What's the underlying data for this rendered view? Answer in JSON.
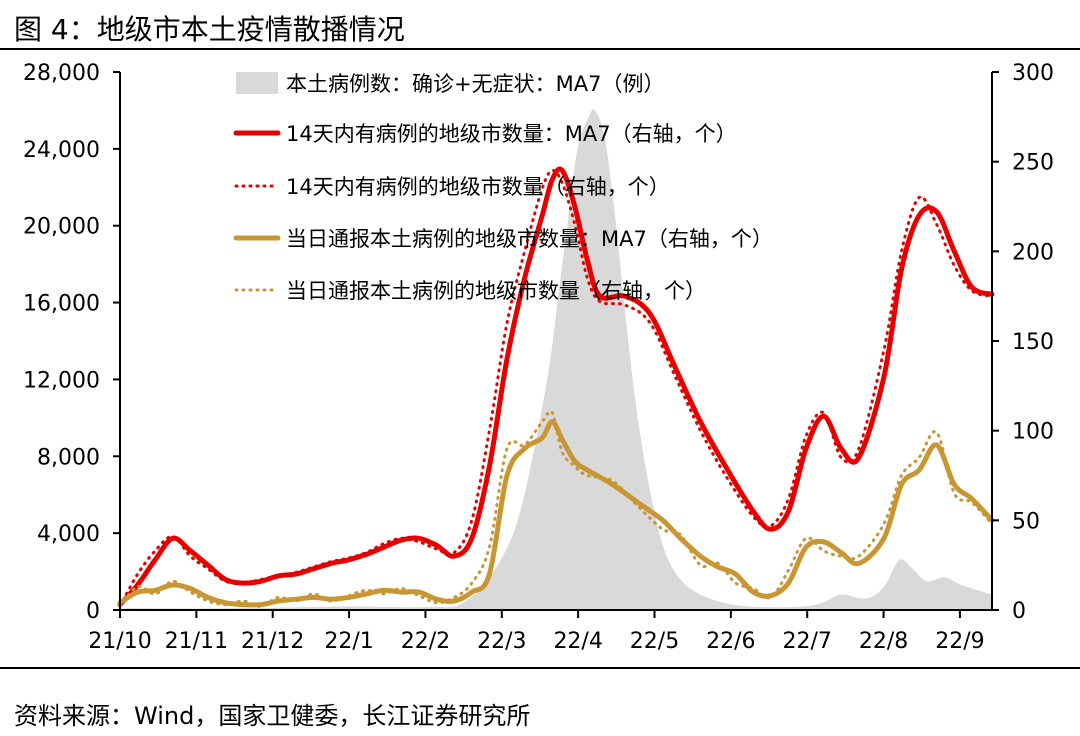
{
  "header": {
    "title": "图 4：地级市本土疫情散播情况"
  },
  "footer": {
    "source": "资料来源：Wind，国家卫健委，长江证券研究所"
  },
  "chart_data": {
    "type": "line",
    "x_tick_labels": [
      "21/10",
      "21/11",
      "21/12",
      "22/1",
      "22/2",
      "22/3",
      "22/4",
      "22/5",
      "22/6",
      "22/7",
      "22/8",
      "22/9"
    ],
    "x_range": [
      "2021-10-01",
      "2022-09-13"
    ],
    "y_left": {
      "ylim": [
        0,
        28000
      ],
      "tick_labels": [
        "0",
        "4,000",
        "8,000",
        "12,000",
        "16,000",
        "20,000",
        "24,000",
        "28,000"
      ],
      "ticks": [
        0,
        4000,
        8000,
        12000,
        16000,
        20000,
        24000,
        28000
      ]
    },
    "y_right": {
      "ylim": [
        0,
        300
      ],
      "tick_labels": [
        "0",
        "50",
        "100",
        "150",
        "200",
        "250",
        "300"
      ],
      "ticks": [
        0,
        50,
        100,
        150,
        200,
        250,
        300
      ]
    },
    "legend_placement": "top-center",
    "grid": false,
    "series": [
      {
        "name": "本土病例数：确诊+无症状：MA7（例）",
        "kind": "area",
        "axis": "left",
        "color": "#d9d9d9",
        "points": [
          [
            "2021-10-01",
            100
          ],
          [
            "2021-11-01",
            80
          ],
          [
            "2021-12-01",
            120
          ],
          [
            "2022-01-01",
            180
          ],
          [
            "2022-02-01",
            150
          ],
          [
            "2022-02-15",
            400
          ],
          [
            "2022-03-01",
            2500
          ],
          [
            "2022-03-10",
            5500
          ],
          [
            "2022-03-20",
            12000
          ],
          [
            "2022-03-25",
            17000
          ],
          [
            "2022-03-28",
            20000
          ],
          [
            "2022-04-01",
            24000
          ],
          [
            "2022-04-05",
            25500
          ],
          [
            "2022-04-08",
            26000
          ],
          [
            "2022-04-12",
            24500
          ],
          [
            "2022-04-16",
            20500
          ],
          [
            "2022-04-20",
            15500
          ],
          [
            "2022-04-25",
            10000
          ],
          [
            "2022-05-01",
            5500
          ],
          [
            "2022-05-06",
            3000
          ],
          [
            "2022-05-12",
            1600
          ],
          [
            "2022-05-20",
            800
          ],
          [
            "2022-06-01",
            300
          ],
          [
            "2022-06-15",
            150
          ],
          [
            "2022-07-01",
            200
          ],
          [
            "2022-07-08",
            400
          ],
          [
            "2022-07-15",
            800
          ],
          [
            "2022-07-25",
            600
          ],
          [
            "2022-08-01",
            1200
          ],
          [
            "2022-08-07",
            2600
          ],
          [
            "2022-08-12",
            2200
          ],
          [
            "2022-08-18",
            1500
          ],
          [
            "2022-08-25",
            1700
          ],
          [
            "2022-09-01",
            1300
          ],
          [
            "2022-09-13",
            800
          ]
        ]
      },
      {
        "name": "14天内有病例的地级市数量：MA7（右轴，个）",
        "kind": "line",
        "axis": "right",
        "style": "solid",
        "color": "#e60000",
        "points": [
          [
            "2021-10-01",
            3
          ],
          [
            "2021-10-08",
            14
          ],
          [
            "2021-10-15",
            28
          ],
          [
            "2021-10-22",
            40
          ],
          [
            "2021-10-29",
            33
          ],
          [
            "2021-11-05",
            25
          ],
          [
            "2021-11-12",
            17
          ],
          [
            "2021-11-19",
            15
          ],
          [
            "2021-11-26",
            16
          ],
          [
            "2021-12-03",
            19
          ],
          [
            "2021-12-10",
            20
          ],
          [
            "2021-12-17",
            23
          ],
          [
            "2021-12-24",
            26
          ],
          [
            "2021-12-31",
            28
          ],
          [
            "2022-01-07",
            31
          ],
          [
            "2022-01-14",
            35
          ],
          [
            "2022-01-21",
            39
          ],
          [
            "2022-01-28",
            40
          ],
          [
            "2022-02-04",
            36
          ],
          [
            "2022-02-11",
            30
          ],
          [
            "2022-02-18",
            40
          ],
          [
            "2022-02-25",
            80
          ],
          [
            "2022-03-04",
            140
          ],
          [
            "2022-03-11",
            185
          ],
          [
            "2022-03-18",
            220
          ],
          [
            "2022-03-22",
            240
          ],
          [
            "2022-03-26",
            245
          ],
          [
            "2022-03-31",
            225
          ],
          [
            "2022-04-05",
            195
          ],
          [
            "2022-04-10",
            175
          ],
          [
            "2022-04-20",
            175
          ],
          [
            "2022-04-30",
            165
          ],
          [
            "2022-05-10",
            135
          ],
          [
            "2022-05-20",
            105
          ],
          [
            "2022-05-30",
            80
          ],
          [
            "2022-06-10",
            55
          ],
          [
            "2022-06-17",
            45
          ],
          [
            "2022-06-24",
            55
          ],
          [
            "2022-07-01",
            90
          ],
          [
            "2022-07-08",
            108
          ],
          [
            "2022-07-15",
            90
          ],
          [
            "2022-07-22",
            85
          ],
          [
            "2022-08-01",
            130
          ],
          [
            "2022-08-08",
            190
          ],
          [
            "2022-08-15",
            220
          ],
          [
            "2022-08-22",
            222
          ],
          [
            "2022-08-29",
            200
          ],
          [
            "2022-09-05",
            180
          ],
          [
            "2022-09-13",
            176
          ]
        ]
      },
      {
        "name": "14天内有病例的地级市数量（右轴，个）",
        "kind": "line",
        "axis": "right",
        "style": "dotted",
        "color": "#e60000",
        "points": [
          [
            "2021-10-01",
            2
          ],
          [
            "2021-10-08",
            20
          ],
          [
            "2021-10-15",
            33
          ],
          [
            "2021-10-22",
            41
          ],
          [
            "2021-10-29",
            30
          ],
          [
            "2021-11-05",
            23
          ],
          [
            "2021-11-12",
            16
          ],
          [
            "2021-11-19",
            15
          ],
          [
            "2021-11-26",
            17
          ],
          [
            "2021-12-03",
            19
          ],
          [
            "2021-12-10",
            21
          ],
          [
            "2021-12-17",
            24
          ],
          [
            "2021-12-24",
            27
          ],
          [
            "2021-12-31",
            29
          ],
          [
            "2022-01-07",
            32
          ],
          [
            "2022-01-14",
            37
          ],
          [
            "2022-01-21",
            40
          ],
          [
            "2022-01-28",
            38
          ],
          [
            "2022-02-04",
            34
          ],
          [
            "2022-02-11",
            32
          ],
          [
            "2022-02-18",
            50
          ],
          [
            "2022-02-25",
            100
          ],
          [
            "2022-03-04",
            160
          ],
          [
            "2022-03-11",
            200
          ],
          [
            "2022-03-18",
            235
          ],
          [
            "2022-03-22",
            245
          ],
          [
            "2022-03-26",
            238
          ],
          [
            "2022-03-31",
            215
          ],
          [
            "2022-04-05",
            185
          ],
          [
            "2022-04-10",
            172
          ],
          [
            "2022-04-20",
            170
          ],
          [
            "2022-04-30",
            160
          ],
          [
            "2022-05-10",
            130
          ],
          [
            "2022-05-20",
            100
          ],
          [
            "2022-05-30",
            75
          ],
          [
            "2022-06-10",
            52
          ],
          [
            "2022-06-17",
            47
          ],
          [
            "2022-06-24",
            62
          ],
          [
            "2022-07-01",
            97
          ],
          [
            "2022-07-08",
            110
          ],
          [
            "2022-07-15",
            85
          ],
          [
            "2022-07-22",
            90
          ],
          [
            "2022-08-01",
            145
          ],
          [
            "2022-08-08",
            200
          ],
          [
            "2022-08-15",
            230
          ],
          [
            "2022-08-22",
            215
          ],
          [
            "2022-08-29",
            192
          ],
          [
            "2022-09-05",
            178
          ],
          [
            "2022-09-13",
            175
          ]
        ]
      },
      {
        "name": "当日通报本土病例的地级市数量：MA7（右轴，个）",
        "kind": "line",
        "axis": "right",
        "style": "solid",
        "color": "#c89632",
        "points": [
          [
            "2021-10-01",
            4
          ],
          [
            "2021-10-08",
            10
          ],
          [
            "2021-10-15",
            11
          ],
          [
            "2021-10-22",
            14
          ],
          [
            "2021-10-29",
            12
          ],
          [
            "2021-11-05",
            7
          ],
          [
            "2021-11-12",
            4
          ],
          [
            "2021-11-19",
            3
          ],
          [
            "2021-11-26",
            3
          ],
          [
            "2021-12-03",
            5
          ],
          [
            "2021-12-10",
            6
          ],
          [
            "2021-12-17",
            7
          ],
          [
            "2021-12-24",
            6
          ],
          [
            "2021-12-31",
            7
          ],
          [
            "2022-01-07",
            9
          ],
          [
            "2022-01-14",
            11
          ],
          [
            "2022-01-21",
            10
          ],
          [
            "2022-01-28",
            10
          ],
          [
            "2022-02-04",
            6
          ],
          [
            "2022-02-11",
            5
          ],
          [
            "2022-02-18",
            10
          ],
          [
            "2022-02-25",
            20
          ],
          [
            "2022-03-04",
            75
          ],
          [
            "2022-03-11",
            90
          ],
          [
            "2022-03-18",
            96
          ],
          [
            "2022-03-22",
            105
          ],
          [
            "2022-03-26",
            95
          ],
          [
            "2022-03-31",
            83
          ],
          [
            "2022-04-05",
            78
          ],
          [
            "2022-04-15",
            70
          ],
          [
            "2022-04-25",
            60
          ],
          [
            "2022-05-05",
            50
          ],
          [
            "2022-05-12",
            40
          ],
          [
            "2022-05-20",
            30
          ],
          [
            "2022-05-27",
            24
          ],
          [
            "2022-06-03",
            20
          ],
          [
            "2022-06-10",
            10
          ],
          [
            "2022-06-17",
            8
          ],
          [
            "2022-06-24",
            15
          ],
          [
            "2022-07-01",
            35
          ],
          [
            "2022-07-08",
            38
          ],
          [
            "2022-07-15",
            32
          ],
          [
            "2022-07-22",
            26
          ],
          [
            "2022-08-01",
            40
          ],
          [
            "2022-08-08",
            70
          ],
          [
            "2022-08-15",
            78
          ],
          [
            "2022-08-22",
            92
          ],
          [
            "2022-08-29",
            70
          ],
          [
            "2022-09-05",
            62
          ],
          [
            "2022-09-13",
            50
          ]
        ]
      },
      {
        "name": "当日通报本土病例的地级市数量（右轴，个）",
        "kind": "line",
        "axis": "right",
        "style": "dotted",
        "color": "#c89632",
        "points": [
          [
            "2021-10-01",
            2
          ],
          [
            "2021-10-08",
            13
          ],
          [
            "2021-10-15",
            9
          ],
          [
            "2021-10-22",
            16
          ],
          [
            "2021-10-29",
            10
          ],
          [
            "2021-11-05",
            5
          ],
          [
            "2021-11-12",
            3
          ],
          [
            "2021-11-19",
            5
          ],
          [
            "2021-11-26",
            2
          ],
          [
            "2021-12-03",
            7
          ],
          [
            "2021-12-10",
            5
          ],
          [
            "2021-12-17",
            9
          ],
          [
            "2021-12-24",
            5
          ],
          [
            "2021-12-31",
            8
          ],
          [
            "2022-01-07",
            11
          ],
          [
            "2022-01-14",
            9
          ],
          [
            "2022-01-21",
            12
          ],
          [
            "2022-01-28",
            8
          ],
          [
            "2022-02-04",
            4
          ],
          [
            "2022-02-11",
            7
          ],
          [
            "2022-02-18",
            15
          ],
          [
            "2022-02-25",
            35
          ],
          [
            "2022-03-04",
            90
          ],
          [
            "2022-03-11",
            92
          ],
          [
            "2022-03-18",
            105
          ],
          [
            "2022-03-22",
            110
          ],
          [
            "2022-03-26",
            88
          ],
          [
            "2022-03-31",
            80
          ],
          [
            "2022-04-05",
            75
          ],
          [
            "2022-04-15",
            72
          ],
          [
            "2022-04-25",
            58
          ],
          [
            "2022-05-05",
            45
          ],
          [
            "2022-05-12",
            42
          ],
          [
            "2022-05-20",
            25
          ],
          [
            "2022-05-27",
            26
          ],
          [
            "2022-06-03",
            15
          ],
          [
            "2022-06-10",
            12
          ],
          [
            "2022-06-17",
            7
          ],
          [
            "2022-06-24",
            22
          ],
          [
            "2022-07-01",
            40
          ],
          [
            "2022-07-08",
            33
          ],
          [
            "2022-07-15",
            30
          ],
          [
            "2022-07-22",
            30
          ],
          [
            "2022-08-01",
            48
          ],
          [
            "2022-08-08",
            75
          ],
          [
            "2022-08-15",
            85
          ],
          [
            "2022-08-22",
            99
          ],
          [
            "2022-08-29",
            65
          ],
          [
            "2022-09-05",
            60
          ],
          [
            "2022-09-13",
            48
          ]
        ]
      }
    ]
  }
}
